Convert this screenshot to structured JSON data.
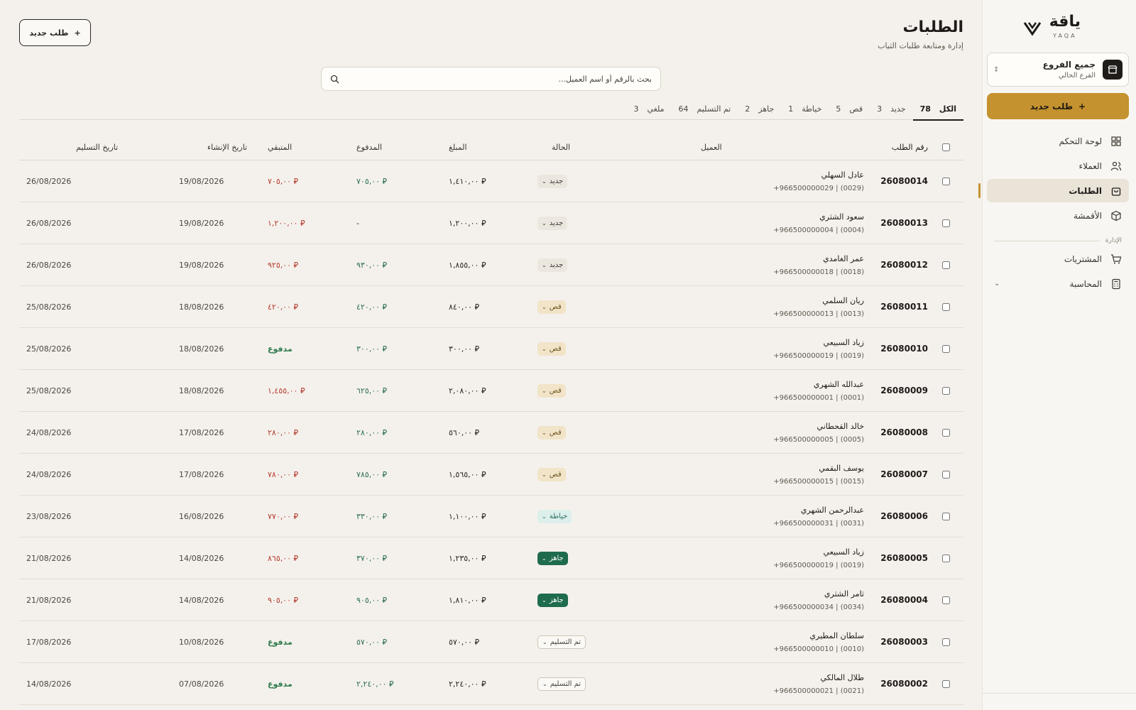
{
  "app": {
    "logo_ar": "ياقة",
    "logo_en": "YAQA"
  },
  "sidebar": {
    "branch_title": "جميع الفروع",
    "branch_sub": "الفرع الحالي",
    "new_order": "طلب جديد",
    "items": [
      {
        "label": "لوحة التحكم",
        "icon": "grid-icon"
      },
      {
        "label": "العملاء",
        "icon": "users-icon"
      },
      {
        "label": "الطلبات",
        "icon": "bag-icon",
        "active": true
      },
      {
        "label": "الأقمشة",
        "icon": "box-icon"
      }
    ],
    "section_label": "الإدارة",
    "admin_items": [
      {
        "label": "المشتريات",
        "icon": "cart-icon"
      },
      {
        "label": "المحاسبة",
        "icon": "calculator-icon"
      }
    ]
  },
  "header": {
    "title": "الطلبات",
    "subtitle": "إدارة ومتابعة طلبات الثياب",
    "new_order": "طلب جديد"
  },
  "search": {
    "placeholder": "بحث بالرقم أو اسم العميل..."
  },
  "tabs": [
    {
      "label": "الكل",
      "count": "78",
      "active": true
    },
    {
      "label": "جديد",
      "count": "3"
    },
    {
      "label": "قص",
      "count": "5"
    },
    {
      "label": "خياطة",
      "count": "1"
    },
    {
      "label": "جاهز",
      "count": "2"
    },
    {
      "label": "تم التسليم",
      "count": "64"
    },
    {
      "label": "ملغي",
      "count": "3"
    }
  ],
  "table": {
    "headers": {
      "id": "رقم الطلب",
      "customer": "العميل",
      "status": "الحالة",
      "amount": "المبلغ",
      "paid": "المدفوع",
      "remaining": "المتبقي",
      "created": "تاريخ الإنشاء",
      "delivery": "تاريخ التسليم"
    },
    "rows": [
      {
        "id": "26080014",
        "name": "عادل السهلي",
        "phone": "+966500000029 | (0029)",
        "status": "جديد",
        "status_kind": "new",
        "amount": "⃁ ١,٤١٠,٠٠",
        "paid": "⃁ ٧٠٥,٠٠",
        "remaining": "⃁ ٧٠٥,٠٠",
        "rem_kind": "rem",
        "created": "19/08/2026",
        "delivery": "26/08/2026"
      },
      {
        "id": "26080013",
        "name": "سعود الشثري",
        "phone": "+966500000004 | (0004)",
        "status": "جديد",
        "status_kind": "new",
        "amount": "⃁ ١,٢٠٠,٠٠",
        "paid": "-",
        "remaining": "⃁ ١,٢٠٠,٠٠",
        "rem_kind": "rem",
        "created": "19/08/2026",
        "delivery": "26/08/2026"
      },
      {
        "id": "26080012",
        "name": "عمر الغامدي",
        "phone": "+966500000018 | (0018)",
        "status": "جديد",
        "status_kind": "new",
        "amount": "⃁ ١,٨٥٥,٠٠",
        "paid": "⃁ ٩٣٠,٠٠",
        "remaining": "⃁ ٩٢٥,٠٠",
        "rem_kind": "rem",
        "created": "19/08/2026",
        "delivery": "26/08/2026"
      },
      {
        "id": "26080011",
        "name": "ريان السلمي",
        "phone": "+966500000013 | (0013)",
        "status": "قص",
        "status_kind": "cut",
        "amount": "⃁ ٨٤٠,٠٠",
        "paid": "⃁ ٤٢٠,٠٠",
        "remaining": "⃁ ٤٢٠,٠٠",
        "rem_kind": "rem",
        "created": "18/08/2026",
        "delivery": "25/08/2026"
      },
      {
        "id": "26080010",
        "name": "زياد السبيعي",
        "phone": "+966500000019 | (0019)",
        "status": "قص",
        "status_kind": "cut",
        "amount": "⃁ ٣٠٠,٠٠",
        "paid": "⃁ ٣٠٠,٠٠",
        "remaining": "مدفوع",
        "rem_kind": "done",
        "created": "18/08/2026",
        "delivery": "25/08/2026"
      },
      {
        "id": "26080009",
        "name": "عبدالله الشهري",
        "phone": "+966500000001 | (0001)",
        "status": "قص",
        "status_kind": "cut",
        "amount": "⃁ ٢,٠٨٠,٠٠",
        "paid": "⃁ ٦٢٥,٠٠",
        "remaining": "⃁ ١,٤٥٥,٠٠",
        "rem_kind": "rem",
        "created": "18/08/2026",
        "delivery": "25/08/2026"
      },
      {
        "id": "26080008",
        "name": "خالد القحطاني",
        "phone": "+966500000005 | (0005)",
        "status": "قص",
        "status_kind": "cut",
        "amount": "⃁ ٥٦٠,٠٠",
        "paid": "⃁ ٢٨٠,٠٠",
        "remaining": "⃁ ٢٨٠,٠٠",
        "rem_kind": "rem",
        "created": "17/08/2026",
        "delivery": "24/08/2026"
      },
      {
        "id": "26080007",
        "name": "يوسف البقمي",
        "phone": "+966500000015 | (0015)",
        "status": "قص",
        "status_kind": "cut",
        "amount": "⃁ ١,٥٦٥,٠٠",
        "paid": "⃁ ٧٨٥,٠٠",
        "remaining": "⃁ ٧٨٠,٠٠",
        "rem_kind": "rem",
        "created": "17/08/2026",
        "delivery": "24/08/2026"
      },
      {
        "id": "26080006",
        "name": "عبدالرحمن الشهري",
        "phone": "+966500000031 | (0031)",
        "status": "خياطة",
        "status_kind": "sew",
        "amount": "⃁ ١,١٠٠,٠٠",
        "paid": "⃁ ٣٣٠,٠٠",
        "remaining": "⃁ ٧٧٠,٠٠",
        "rem_kind": "rem",
        "created": "16/08/2026",
        "delivery": "23/08/2026"
      },
      {
        "id": "26080005",
        "name": "زياد السبيعي",
        "phone": "+966500000019 | (0019)",
        "status": "جاهز",
        "status_kind": "ready",
        "amount": "⃁ ١,٢٣٥,٠٠",
        "paid": "⃁ ٣٧٠,٠٠",
        "remaining": "⃁ ٨٦٥,٠٠",
        "rem_kind": "rem",
        "created": "14/08/2026",
        "delivery": "21/08/2026"
      },
      {
        "id": "26080004",
        "name": "ثامر الشثري",
        "phone": "+966500000034 | (0034)",
        "status": "جاهز",
        "status_kind": "ready",
        "amount": "⃁ ١,٨١٠,٠٠",
        "paid": "⃁ ٩٠٥,٠٠",
        "remaining": "⃁ ٩٠٥,٠٠",
        "rem_kind": "rem",
        "created": "14/08/2026",
        "delivery": "21/08/2026"
      },
      {
        "id": "26080003",
        "name": "سلطان المطيري",
        "phone": "+966500000010 | (0010)",
        "status": "تم التسليم",
        "status_kind": "delivered",
        "amount": "⃁ ٥٧٠,٠٠",
        "paid": "⃁ ٥٧٠,٠٠",
        "remaining": "مدفوع",
        "rem_kind": "done",
        "created": "10/08/2026",
        "delivery": "17/08/2026"
      },
      {
        "id": "26080002",
        "name": "طلال المالكي",
        "phone": "+966500000021 | (0021)",
        "status": "تم التسليم",
        "status_kind": "delivered",
        "amount": "⃁ ٢,٢٤٠,٠٠",
        "paid": "⃁ ٢,٢٤٠,٠٠",
        "remaining": "مدفوع",
        "rem_kind": "done",
        "created": "07/08/2026",
        "delivery": "14/08/2026"
      }
    ]
  },
  "colors": {
    "accent": "#c4922e",
    "ready": "#1f6b4e",
    "remaining": "#b63b2e",
    "paid": "#2f6f55"
  }
}
